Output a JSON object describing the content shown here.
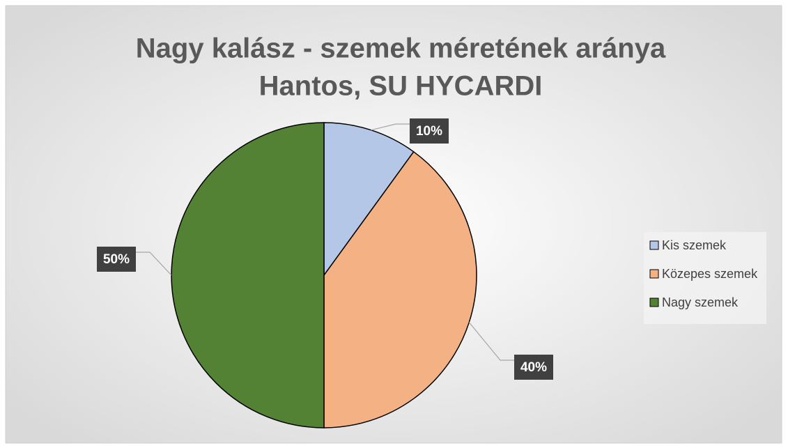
{
  "chart_data": {
    "type": "pie",
    "title": "Nagy kalász - szemek méretének aránya",
    "subtitle": "Hantos, SU HYCARDI",
    "categories": [
      "Kis szemek",
      "Közepes szemek",
      "Nagy szemek"
    ],
    "values": [
      10,
      40,
      50
    ],
    "value_labels": [
      "10%",
      "40%",
      "50%"
    ],
    "colors": [
      "#b4c7e7",
      "#f4b183",
      "#548235"
    ],
    "legend": "right"
  }
}
